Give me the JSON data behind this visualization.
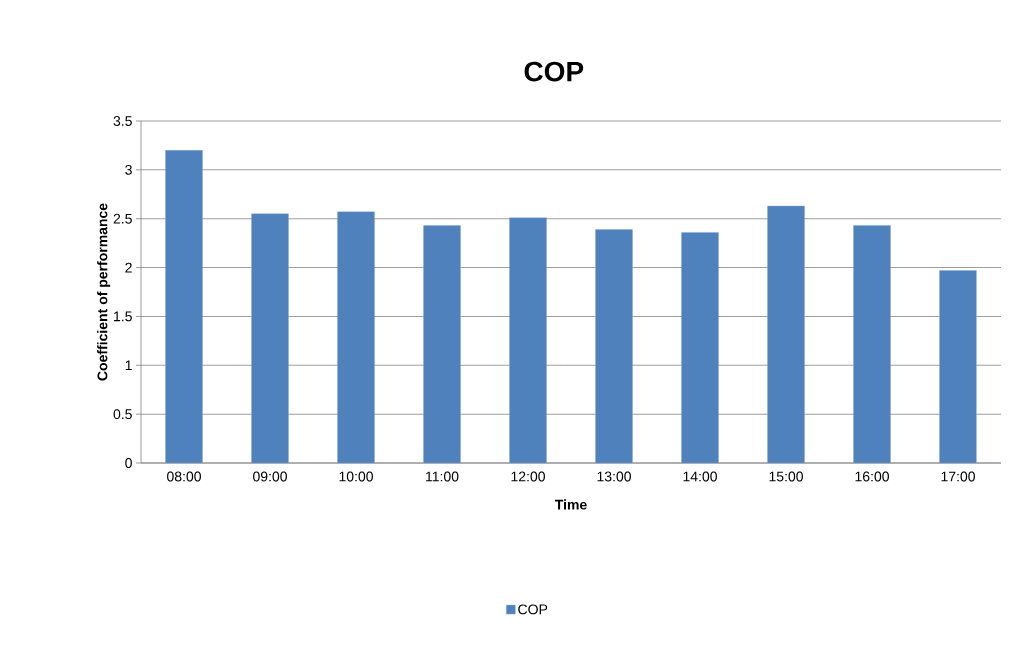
{
  "chart_data": {
    "type": "bar",
    "title": "COP",
    "xlabel": "Time",
    "ylabel": "Coefficient of performance",
    "categories": [
      "08:00",
      "09:00",
      "10:00",
      "11:00",
      "12:00",
      "13:00",
      "14:00",
      "15:00",
      "16:00",
      "17:00"
    ],
    "series": [
      {
        "name": "COP",
        "color": "#4f81bd",
        "values": [
          3.2,
          2.55,
          2.57,
          2.43,
          2.51,
          2.39,
          2.36,
          2.63,
          2.43,
          1.97
        ]
      }
    ],
    "ylim": [
      0,
      3.5
    ],
    "yticks": [
      0,
      0.5,
      1,
      1.5,
      2,
      2.5,
      3,
      3.5
    ],
    "grid": "y",
    "legend": "bottom"
  }
}
